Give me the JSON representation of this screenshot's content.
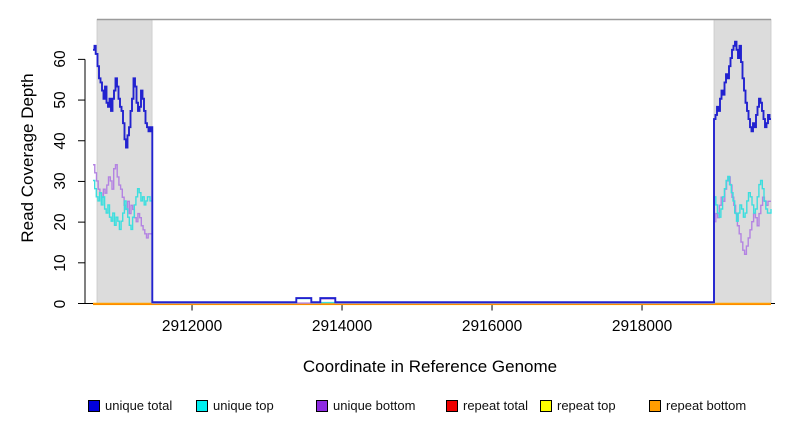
{
  "figure": {
    "xlabel": "Coordinate in Reference Genome",
    "ylabel": "Read Coverage Depth"
  },
  "chart_data": {
    "type": "line",
    "style": "step",
    "title": "",
    "xlabel": "Coordinate in Reference Genome",
    "ylabel": "Read Coverage Depth",
    "xlim": [
      2910573,
      2919773
    ],
    "ylim": [
      0,
      69.8
    ],
    "x_ticks": [
      2912000,
      2914000,
      2916000,
      2918000
    ],
    "y_ticks": [
      0,
      10,
      20,
      30,
      40,
      50,
      60
    ],
    "grid": false,
    "legend_position": "bottom",
    "shaded_regions": [
      {
        "name": "repeat-region-left",
        "x0": 2910733,
        "x1": 2911467,
        "color": "#dcdcdc"
      },
      {
        "name": "repeat-region-right",
        "x0": 2918960,
        "x1": 2919720,
        "color": "#dcdcdc"
      }
    ],
    "legend": [
      {
        "label": "unique total",
        "color": "#0101dd"
      },
      {
        "label": "unique top",
        "color": "#00eeee"
      },
      {
        "label": "unique bottom",
        "color": "#8d2ae0"
      },
      {
        "label": "repeat total",
        "color": "#ee0000"
      },
      {
        "label": "repeat top",
        "color": "#ffff00"
      },
      {
        "label": "repeat bottom",
        "color": "#ff9d00"
      }
    ],
    "series": [
      {
        "name": "repeat top",
        "color": "#ffff00",
        "width": 1.4,
        "points": [
          [
            2910680,
            0
          ],
          [
            2919720,
            0
          ]
        ]
      },
      {
        "name": "repeat total",
        "color": "#ff0000",
        "width": 1.4,
        "points": [
          [
            2910680,
            0
          ],
          [
            2919720,
            0
          ]
        ]
      },
      {
        "name": "repeat bottom",
        "color": "#ffa000",
        "width": 1.4,
        "points": [
          [
            2910680,
            0
          ],
          [
            2919720,
            0
          ]
        ]
      },
      {
        "name": "unique bottom",
        "color": "#b383e2",
        "width": 1.4,
        "points": [
          [
            2910680,
            34
          ],
          [
            2910703,
            32
          ],
          [
            2910726,
            30
          ],
          [
            2910749,
            28
          ],
          [
            2910772,
            27
          ],
          [
            2910795,
            26
          ],
          [
            2910818,
            28
          ],
          [
            2910841,
            27
          ],
          [
            2910864,
            29
          ],
          [
            2910887,
            31
          ],
          [
            2910910,
            30
          ],
          [
            2910933,
            28
          ],
          [
            2910956,
            33
          ],
          [
            2910979,
            34
          ],
          [
            2911002,
            31
          ],
          [
            2911025,
            29
          ],
          [
            2911048,
            28
          ],
          [
            2911071,
            26
          ],
          [
            2911094,
            24
          ],
          [
            2911117,
            23
          ],
          [
            2911140,
            25
          ],
          [
            2911163,
            22
          ],
          [
            2911186,
            24
          ],
          [
            2911209,
            23
          ],
          [
            2911232,
            21
          ],
          [
            2911255,
            20
          ],
          [
            2911278,
            22
          ],
          [
            2911301,
            21
          ],
          [
            2911324,
            19
          ],
          [
            2911347,
            18
          ],
          [
            2911370,
            17
          ],
          [
            2911393,
            16
          ],
          [
            2911416,
            17
          ],
          [
            2911470,
            0
          ],
          [
            2913710,
            1
          ],
          [
            2913910,
            0
          ],
          [
            2918960,
            20
          ],
          [
            2918984,
            22
          ],
          [
            2919008,
            21
          ],
          [
            2919032,
            24
          ],
          [
            2919056,
            26
          ],
          [
            2919080,
            25
          ],
          [
            2919104,
            28
          ],
          [
            2919128,
            30
          ],
          [
            2919152,
            31
          ],
          [
            2919176,
            29
          ],
          [
            2919200,
            26
          ],
          [
            2919224,
            24
          ],
          [
            2919248,
            22
          ],
          [
            2919272,
            19
          ],
          [
            2919296,
            17
          ],
          [
            2919320,
            15
          ],
          [
            2919344,
            13
          ],
          [
            2919368,
            12
          ],
          [
            2919392,
            14
          ],
          [
            2919416,
            16
          ],
          [
            2919440,
            18
          ],
          [
            2919464,
            20
          ],
          [
            2919488,
            22
          ],
          [
            2919512,
            21
          ],
          [
            2919536,
            19
          ],
          [
            2919560,
            22
          ],
          [
            2919584,
            24
          ],
          [
            2919608,
            26
          ],
          [
            2919632,
            25
          ],
          [
            2919656,
            24
          ],
          [
            2919680,
            25
          ],
          [
            2919720,
            25
          ]
        ]
      },
      {
        "name": "unique top",
        "color": "#3cdede",
        "width": 1.4,
        "points": [
          [
            2910680,
            30
          ],
          [
            2910702,
            28
          ],
          [
            2910724,
            26
          ],
          [
            2910746,
            25
          ],
          [
            2910768,
            27
          ],
          [
            2910790,
            24
          ],
          [
            2910812,
            26
          ],
          [
            2910834,
            23
          ],
          [
            2910856,
            22
          ],
          [
            2910878,
            24
          ],
          [
            2910900,
            21
          ],
          [
            2910922,
            20
          ],
          [
            2910944,
            22
          ],
          [
            2910966,
            19
          ],
          [
            2910988,
            21
          ],
          [
            2911010,
            20
          ],
          [
            2911032,
            18
          ],
          [
            2911054,
            20
          ],
          [
            2911076,
            22
          ],
          [
            2911098,
            25
          ],
          [
            2911120,
            23
          ],
          [
            2911142,
            21
          ],
          [
            2911164,
            19
          ],
          [
            2911186,
            18
          ],
          [
            2911208,
            21
          ],
          [
            2911230,
            24
          ],
          [
            2911252,
            26
          ],
          [
            2911274,
            28
          ],
          [
            2911296,
            27
          ],
          [
            2911318,
            25
          ],
          [
            2911340,
            26
          ],
          [
            2911362,
            24
          ],
          [
            2911384,
            25
          ],
          [
            2911406,
            26
          ],
          [
            2911440,
            25
          ],
          [
            2911470,
            0
          ],
          [
            2913390,
            1
          ],
          [
            2913590,
            0
          ],
          [
            2918960,
            26
          ],
          [
            2918983,
            24
          ],
          [
            2919006,
            22
          ],
          [
            2919029,
            21
          ],
          [
            2919052,
            23
          ],
          [
            2919075,
            26
          ],
          [
            2919098,
            28
          ],
          [
            2919121,
            30
          ],
          [
            2919144,
            31
          ],
          [
            2919167,
            29
          ],
          [
            2919190,
            27
          ],
          [
            2919213,
            25
          ],
          [
            2919236,
            22
          ],
          [
            2919259,
            20
          ],
          [
            2919282,
            22
          ],
          [
            2919305,
            24
          ],
          [
            2919328,
            23
          ],
          [
            2919351,
            21
          ],
          [
            2919374,
            22
          ],
          [
            2919397,
            25
          ],
          [
            2919420,
            27
          ],
          [
            2919443,
            26
          ],
          [
            2919466,
            24
          ],
          [
            2919489,
            22
          ],
          [
            2919512,
            23
          ],
          [
            2919535,
            26
          ],
          [
            2919558,
            29
          ],
          [
            2919581,
            30
          ],
          [
            2919604,
            28
          ],
          [
            2919627,
            25
          ],
          [
            2919650,
            23
          ],
          [
            2919673,
            22
          ],
          [
            2919720,
            23
          ]
        ]
      },
      {
        "name": "unique total",
        "color": "#2222cf",
        "width": 1.9,
        "points": [
          [
            2910680,
            62
          ],
          [
            2910700,
            63
          ],
          [
            2910715,
            61
          ],
          [
            2910740,
            58
          ],
          [
            2910760,
            55
          ],
          [
            2910780,
            54
          ],
          [
            2910800,
            52
          ],
          [
            2910820,
            50
          ],
          [
            2910840,
            53
          ],
          [
            2910860,
            49
          ],
          [
            2910880,
            48
          ],
          [
            2910900,
            50
          ],
          [
            2910920,
            47
          ],
          [
            2910940,
            50
          ],
          [
            2910960,
            52
          ],
          [
            2910980,
            55
          ],
          [
            2911000,
            53
          ],
          [
            2911020,
            50
          ],
          [
            2911040,
            48
          ],
          [
            2911060,
            47
          ],
          [
            2911080,
            44
          ],
          [
            2911100,
            40
          ],
          [
            2911120,
            38
          ],
          [
            2911140,
            41
          ],
          [
            2911160,
            43
          ],
          [
            2911180,
            47
          ],
          [
            2911200,
            50
          ],
          [
            2911220,
            55
          ],
          [
            2911240,
            53
          ],
          [
            2911260,
            49
          ],
          [
            2911280,
            47
          ],
          [
            2911300,
            48
          ],
          [
            2911320,
            52
          ],
          [
            2911340,
            50
          ],
          [
            2911360,
            47
          ],
          [
            2911380,
            44
          ],
          [
            2911400,
            43
          ],
          [
            2911420,
            42
          ],
          [
            2911445,
            43
          ],
          [
            2911470,
            0
          ],
          [
            2913390,
            1
          ],
          [
            2913590,
            0
          ],
          [
            2913710,
            1
          ],
          [
            2913910,
            0
          ],
          [
            2918960,
            45
          ],
          [
            2918980,
            46
          ],
          [
            2919000,
            48
          ],
          [
            2919020,
            47
          ],
          [
            2919040,
            50
          ],
          [
            2919060,
            52
          ],
          [
            2919080,
            51
          ],
          [
            2919100,
            54
          ],
          [
            2919120,
            56
          ],
          [
            2919140,
            55
          ],
          [
            2919160,
            58
          ],
          [
            2919180,
            60
          ],
          [
            2919200,
            62
          ],
          [
            2919220,
            63
          ],
          [
            2919240,
            64
          ],
          [
            2919260,
            62
          ],
          [
            2919280,
            60
          ],
          [
            2919300,
            63
          ],
          [
            2919320,
            59
          ],
          [
            2919340,
            55
          ],
          [
            2919360,
            52
          ],
          [
            2919380,
            49
          ],
          [
            2919400,
            47
          ],
          [
            2919420,
            45
          ],
          [
            2919440,
            43
          ],
          [
            2919460,
            42
          ],
          [
            2919480,
            44
          ],
          [
            2919500,
            43
          ],
          [
            2919520,
            46
          ],
          [
            2919540,
            48
          ],
          [
            2919560,
            50
          ],
          [
            2919580,
            49
          ],
          [
            2919600,
            47
          ],
          [
            2919620,
            45
          ],
          [
            2919640,
            43
          ],
          [
            2919660,
            44
          ],
          [
            2919680,
            46
          ],
          [
            2919700,
            45
          ],
          [
            2919720,
            45
          ]
        ]
      }
    ]
  }
}
